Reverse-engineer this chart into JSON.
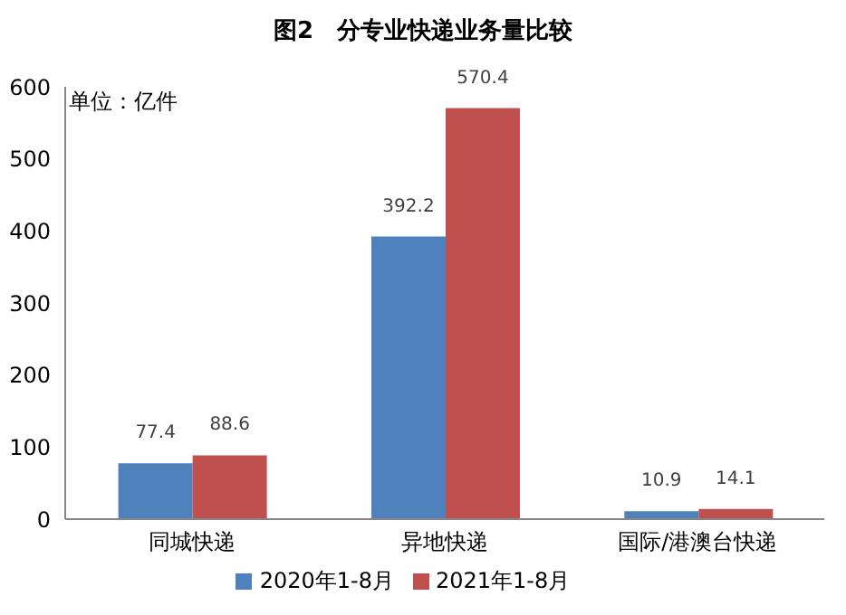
{
  "chart_data": {
    "type": "bar",
    "title": "图2　分专业快递业务量比较",
    "annotations": [
      "单位：亿件"
    ],
    "categories": [
      "同城快递",
      "异地快递",
      "国际/港澳台快递"
    ],
    "series": [
      {
        "name": "2020年1-8月",
        "color": "#4f81bd",
        "values": [
          77.4,
          392.2,
          10.9
        ]
      },
      {
        "name": "2021年1-8月",
        "color": "#c0504d",
        "values": [
          88.6,
          570.4,
          14.1
        ]
      }
    ],
    "ylim": [
      0,
      600
    ],
    "yticks": [
      0,
      100,
      200,
      300,
      400,
      500,
      600
    ],
    "grid": false,
    "legend": "bottom",
    "data_labels": true
  }
}
